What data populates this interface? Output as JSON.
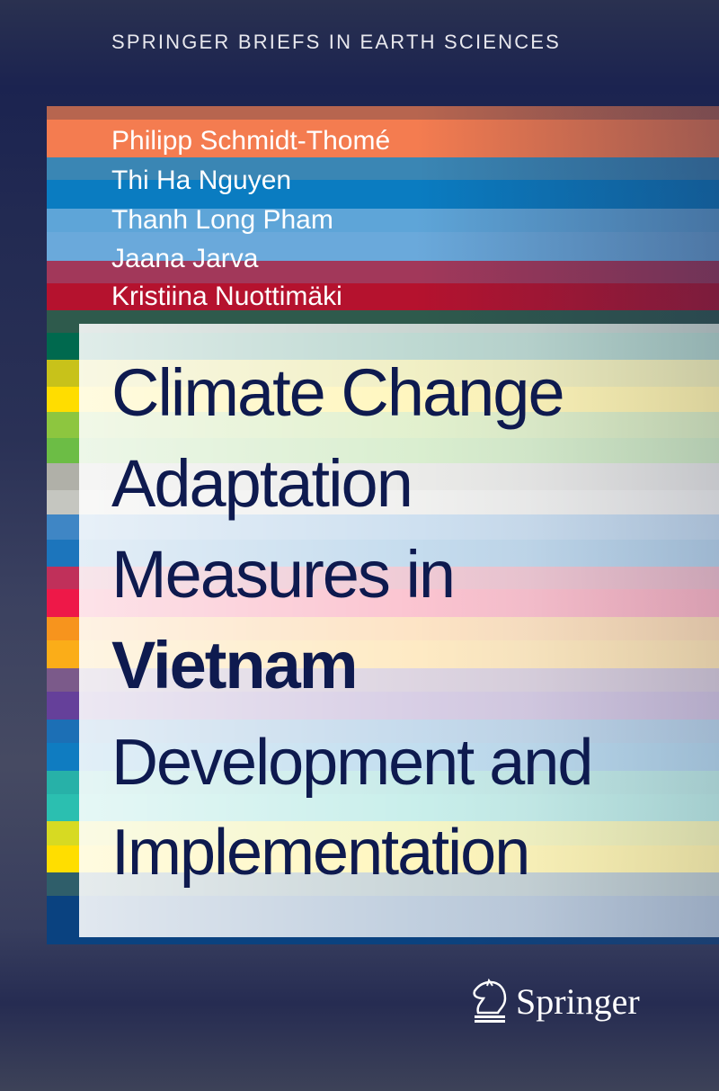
{
  "series": "SPRINGER BRIEFS IN EARTH SCIENCES",
  "authors": [
    "Philipp Schmidt-Thomé",
    "Thi Ha Nguyen",
    "Thanh Long Pham",
    "Jaana Jarva",
    "Kristiina Nuottimäki"
  ],
  "title": [
    "Climate Change",
    "Adaptation",
    "Measures in",
    "Vietnam"
  ],
  "subtitle": [
    "Development and",
    "Implementation"
  ],
  "publisher": "Springer",
  "colors": {
    "title_text": "#0e1a4f",
    "author_stripes": [
      "#b7654f",
      "#f47c50",
      "#3a86b4",
      "#0a7cc1",
      "#5ea5d8",
      "#6aa9db",
      "#a2385a",
      "#b5122e"
    ],
    "side_stripes": [
      "#2e5a4c",
      "#00694e",
      "#c8c21a",
      "#ffdd00",
      "#8dc63f",
      "#6cbd45",
      "#b0b0a8",
      "#c5c6c0",
      "#3f86c5",
      "#1c75bc",
      "#c0305a",
      "#ee1848",
      "#f7941d",
      "#fbad18",
      "#7b5a8a",
      "#65409a",
      "#1c6fb5",
      "#0f7cc1",
      "#27b1a8",
      "#2bbfb0",
      "#d7da22",
      "#ffde00",
      "#2f5e6a",
      "#0a4280"
    ]
  }
}
